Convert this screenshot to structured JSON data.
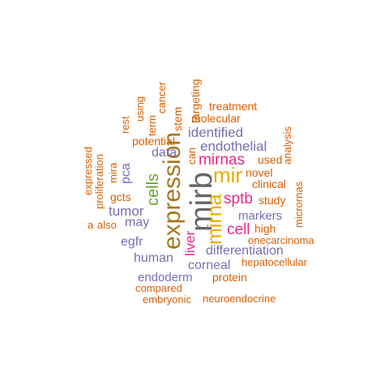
{
  "colors": {
    "orange": "#d95f02",
    "purple": "#7570b3",
    "magenta": "#e7298a",
    "green": "#66a61e",
    "gold": "#e6ab02",
    "brown": "#a6761d",
    "gray": "#666666"
  },
  "words": [
    {
      "text": "mirb",
      "color": "gray"
    },
    {
      "text": "expression",
      "color": "brown"
    },
    {
      "text": "mir",
      "color": "gold"
    },
    {
      "text": "mirna",
      "color": "gold"
    },
    {
      "text": "cells",
      "color": "green"
    },
    {
      "text": "mirnas",
      "color": "magenta"
    },
    {
      "text": "sptb",
      "color": "magenta"
    },
    {
      "text": "cell",
      "color": "magenta"
    },
    {
      "text": "liver",
      "color": "magenta"
    },
    {
      "text": "endothelial",
      "color": "purple"
    },
    {
      "text": "identified",
      "color": "purple"
    },
    {
      "text": "data",
      "color": "purple"
    },
    {
      "text": "tumor",
      "color": "purple"
    },
    {
      "text": "may",
      "color": "purple"
    },
    {
      "text": "egfr",
      "color": "purple"
    },
    {
      "text": "human",
      "color": "purple"
    },
    {
      "text": "corneal",
      "color": "purple"
    },
    {
      "text": "endoderm",
      "color": "purple"
    },
    {
      "text": "differentiation",
      "color": "purple"
    },
    {
      "text": "markers",
      "color": "purple"
    },
    {
      "text": "pca",
      "color": "purple"
    },
    {
      "text": "treatment",
      "color": "orange"
    },
    {
      "text": "molecular",
      "color": "orange"
    },
    {
      "text": "potential",
      "color": "orange"
    },
    {
      "text": "used",
      "color": "orange"
    },
    {
      "text": "novel",
      "color": "orange"
    },
    {
      "text": "clinical",
      "color": "orange"
    },
    {
      "text": "study",
      "color": "orange"
    },
    {
      "text": "high",
      "color": "orange"
    },
    {
      "text": "onecarcinoma",
      "color": "orange"
    },
    {
      "text": "hepatocellular",
      "color": "orange"
    },
    {
      "text": "protein",
      "color": "orange"
    },
    {
      "text": "compared",
      "color": "orange"
    },
    {
      "text": "embryonic",
      "color": "orange"
    },
    {
      "text": "neuroendocrine",
      "color": "orange"
    },
    {
      "text": "gcts",
      "color": "orange"
    },
    {
      "text": "also",
      "color": "orange"
    },
    {
      "text": "expressed",
      "color": "orange"
    },
    {
      "text": "proliferation",
      "color": "orange"
    },
    {
      "text": "mira",
      "color": "orange"
    },
    {
      "text": "rest",
      "color": "orange"
    },
    {
      "text": "using",
      "color": "orange"
    },
    {
      "text": "term",
      "color": "orange"
    },
    {
      "text": "cancer",
      "color": "orange"
    },
    {
      "text": "stem",
      "color": "orange"
    },
    {
      "text": "targeting",
      "color": "orange"
    },
    {
      "text": "can",
      "color": "orange"
    },
    {
      "text": "analysis",
      "color": "orange"
    },
    {
      "text": "micrornas",
      "color": "orange"
    },
    {
      "text": "a",
      "color": "orange"
    }
  ]
}
